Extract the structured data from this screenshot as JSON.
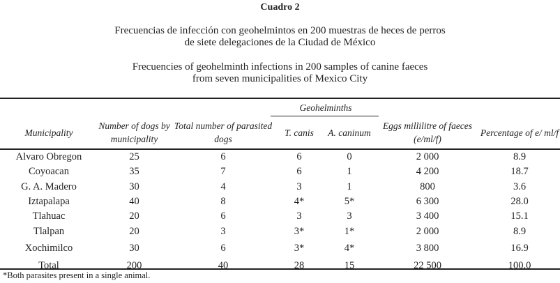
{
  "caption": "Cuadro 2",
  "title_es": [
    "Frecuencias de infección con geohelmintos en 200 muestras de heces de perros",
    "de siete delegaciones de la Ciudad de México"
  ],
  "title_en": [
    "Frecuencies of geohelminth infections in 200 samples of canine faeces",
    "from seven municipalities of Mexico City"
  ],
  "group_header": "Geohelminths",
  "headers": [
    "Municipality",
    "Number of dogs by municipality",
    "Total number of parasited dogs",
    "T. canis",
    "A. caninum",
    "Eggs millilitre of faeces (e/ml/f)",
    "Percentage of e/ ml/f"
  ],
  "rows": [
    [
      "Alvaro Obregon",
      "25",
      "6",
      "6",
      "0",
      "2 000",
      "8.9"
    ],
    [
      "Coyoacan",
      "35",
      "7",
      "6",
      "1",
      "4 200",
      "18.7"
    ],
    [
      "G. A. Madero",
      "30",
      "4",
      "3",
      "1",
      "800",
      "3.6"
    ],
    [
      "Iztapalapa",
      "40",
      "8",
      "4*",
      "5*",
      "6 300",
      "28.0"
    ],
    [
      "Tlahuac",
      "20",
      "6",
      "3",
      "3",
      "3 400",
      "15.1"
    ],
    [
      "Tlalpan",
      "20",
      "3",
      "3*",
      "1*",
      "2 000",
      "8.9"
    ],
    [
      "Xochimilco",
      "30",
      "6",
      "3*",
      "4*",
      "3 800",
      "16.9"
    ],
    [
      "Total",
      "200",
      "40",
      "28",
      "15",
      "22 500",
      "100.0"
    ]
  ],
  "footnote": "*Both parasites present in a single animal."
}
